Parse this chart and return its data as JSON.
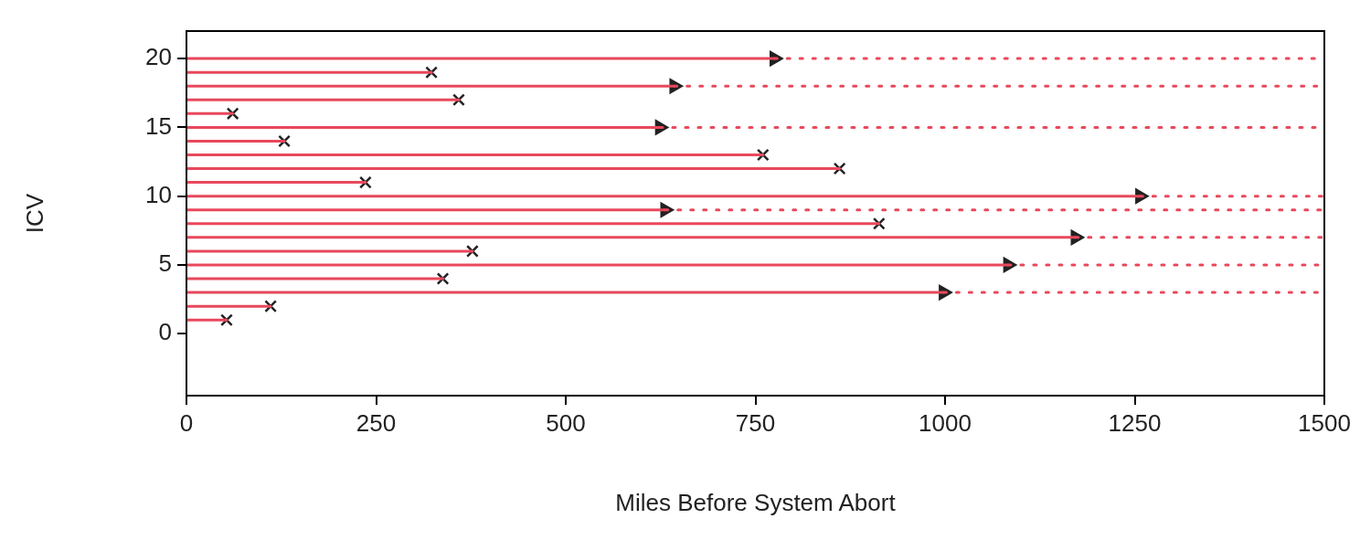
{
  "chart_data": {
    "type": "scatter",
    "xlabel": "Miles Before System Abort",
    "ylabel": "ICV",
    "xlim": [
      0,
      1500
    ],
    "xticks": [
      0,
      250,
      500,
      750,
      1000,
      1250,
      1500
    ],
    "ylim": [
      -4.5,
      22
    ],
    "yticks": [
      0,
      5,
      10,
      15,
      20
    ],
    "legend": false,
    "series": [
      {
        "type": "line",
        "color": "#e8485c",
        "marker": "none",
        "line_style": "solid",
        "x": [
          0,
          53
        ],
        "values": [
          1,
          1
        ]
      },
      {
        "type": "line",
        "color": "#e8485c",
        "marker": "none",
        "line_style": "solid",
        "x": [
          0,
          111
        ],
        "values": [
          2,
          2
        ]
      },
      {
        "type": "line",
        "color": "#e8485c",
        "marker": "none",
        "line_style": "solid",
        "x": [
          0,
          998
        ],
        "values": [
          3,
          3
        ]
      },
      {
        "type": "line",
        "color": "#e8485c",
        "marker": "none",
        "line_style": "solid",
        "x": [
          0,
          338
        ],
        "values": [
          4,
          4
        ]
      },
      {
        "type": "line",
        "color": "#e8485c",
        "marker": "none",
        "line_style": "solid",
        "x": [
          0,
          1083
        ],
        "values": [
          5,
          5
        ]
      },
      {
        "type": "line",
        "color": "#e8485c",
        "marker": "none",
        "line_style": "solid",
        "x": [
          0,
          377
        ],
        "values": [
          6,
          6
        ]
      },
      {
        "type": "line",
        "color": "#e8485c",
        "marker": "none",
        "line_style": "solid",
        "x": [
          0,
          1172
        ],
        "values": [
          7,
          7
        ]
      },
      {
        "type": "line",
        "color": "#e8485c",
        "marker": "none",
        "line_style": "solid",
        "x": [
          0,
          913
        ],
        "values": [
          8,
          8
        ]
      },
      {
        "type": "line",
        "color": "#e8485c",
        "marker": "none",
        "line_style": "solid",
        "x": [
          0,
          631
        ],
        "values": [
          9,
          9
        ]
      },
      {
        "type": "line",
        "color": "#e8485c",
        "marker": "none",
        "line_style": "solid",
        "x": [
          0,
          1257
        ],
        "values": [
          10,
          10
        ]
      },
      {
        "type": "line",
        "color": "#e8485c",
        "marker": "none",
        "line_style": "solid",
        "x": [
          0,
          236
        ],
        "values": [
          11,
          11
        ]
      },
      {
        "type": "line",
        "color": "#e8485c",
        "marker": "none",
        "line_style": "solid",
        "x": [
          0,
          861
        ],
        "values": [
          12,
          12
        ]
      },
      {
        "type": "line",
        "color": "#e8485c",
        "marker": "none",
        "line_style": "solid",
        "x": [
          0,
          760
        ],
        "values": [
          13,
          13
        ]
      },
      {
        "type": "line",
        "color": "#e8485c",
        "marker": "none",
        "line_style": "solid",
        "x": [
          0,
          129
        ],
        "values": [
          14,
          14
        ]
      },
      {
        "type": "line",
        "color": "#e8485c",
        "marker": "none",
        "line_style": "solid",
        "x": [
          0,
          624
        ],
        "values": [
          15,
          15
        ]
      },
      {
        "type": "line",
        "color": "#e8485c",
        "marker": "none",
        "line_style": "solid",
        "x": [
          0,
          61
        ],
        "values": [
          16,
          16
        ]
      },
      {
        "type": "line",
        "color": "#e8485c",
        "marker": "none",
        "line_style": "solid",
        "x": [
          0,
          359
        ],
        "values": [
          17,
          17
        ]
      },
      {
        "type": "line",
        "color": "#e8485c",
        "marker": "none",
        "line_style": "solid",
        "x": [
          0,
          643
        ],
        "values": [
          18,
          18
        ]
      },
      {
        "type": "line",
        "color": "#e8485c",
        "marker": "none",
        "line_style": "solid",
        "x": [
          0,
          323
        ],
        "values": [
          19,
          19
        ]
      },
      {
        "type": "line",
        "color": "#e8485c",
        "marker": "none",
        "line_style": "solid",
        "x": [
          0,
          775
        ],
        "values": [
          20,
          20
        ]
      },
      {
        "type": "line",
        "color": "#e8485c",
        "marker": "none",
        "line_style": "dotted",
        "x": [
          998,
          1500
        ],
        "values": [
          3,
          3
        ]
      },
      {
        "type": "line",
        "color": "#e8485c",
        "marker": "none",
        "line_style": "dotted",
        "x": [
          1083,
          1500
        ],
        "values": [
          5,
          5
        ]
      },
      {
        "type": "line",
        "color": "#e8485c",
        "marker": "none",
        "line_style": "dotted",
        "x": [
          1172,
          1500
        ],
        "values": [
          7,
          7
        ]
      },
      {
        "type": "line",
        "color": "#e8485c",
        "marker": "none",
        "line_style": "dotted",
        "x": [
          631,
          1500
        ],
        "values": [
          9,
          9
        ]
      },
      {
        "type": "line",
        "color": "#e8485c",
        "marker": "none",
        "line_style": "dotted",
        "x": [
          1257,
          1500
        ],
        "values": [
          10,
          10
        ]
      },
      {
        "type": "line",
        "color": "#e8485c",
        "marker": "none",
        "line_style": "dotted",
        "x": [
          624,
          1500
        ],
        "values": [
          15,
          15
        ]
      },
      {
        "type": "line",
        "color": "#e8485c",
        "marker": "none",
        "line_style": "dotted",
        "x": [
          643,
          1500
        ],
        "values": [
          18,
          18
        ]
      },
      {
        "type": "line",
        "color": "#e8485c",
        "marker": "none",
        "line_style": "dotted",
        "x": [
          775,
          1500
        ],
        "values": [
          20,
          20
        ]
      },
      {
        "color": "#222222",
        "marker": "cross",
        "x": [
          53,
          111,
          338,
          377,
          913,
          236,
          861,
          760,
          129,
          61,
          359,
          323
        ],
        "values": [
          1,
          2,
          4,
          6,
          8,
          11,
          12,
          13,
          14,
          16,
          17,
          19
        ]
      },
      {
        "color": "#222222",
        "marker": "triangle",
        "x": [
          998,
          1083,
          1172,
          631,
          1257,
          624,
          643,
          775
        ],
        "values": [
          3,
          5,
          7,
          9,
          10,
          15,
          18,
          20
        ]
      }
    ]
  }
}
